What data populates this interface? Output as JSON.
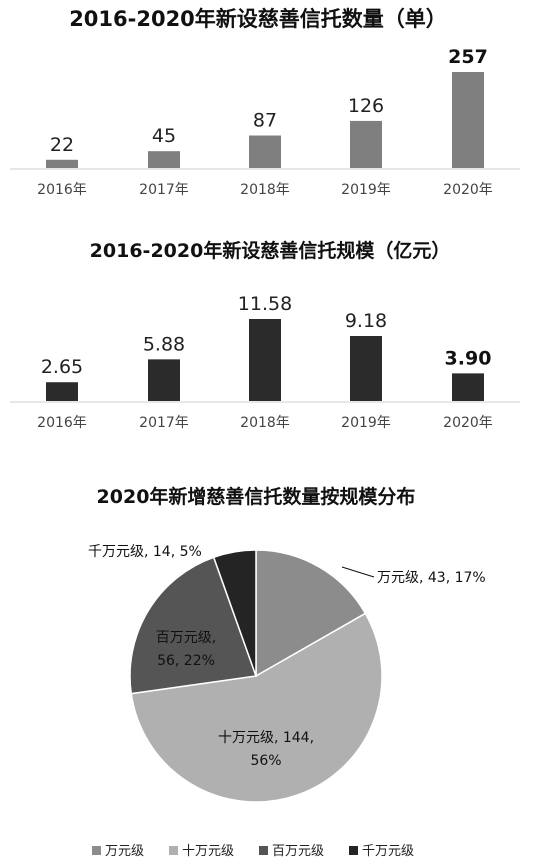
{
  "chart_data": [
    {
      "type": "bar",
      "title": "2016-2020年新设慈善信托数量（单）",
      "categories": [
        "2016年",
        "2017年",
        "2018年",
        "2019年",
        "2020年"
      ],
      "values": [
        22,
        45,
        87,
        126,
        257
      ],
      "value_labels": [
        "22",
        "45",
        "87",
        "126",
        "257"
      ],
      "ylim": [
        0,
        257
      ],
      "bar_color": "#7f7f7f",
      "grid": false
    },
    {
      "type": "bar",
      "title": "2016-2020年新设慈善信托规模（亿元）",
      "categories": [
        "2016年",
        "2017年",
        "2018年",
        "2019年",
        "2020年"
      ],
      "values": [
        2.65,
        5.88,
        11.58,
        9.18,
        3.9
      ],
      "value_labels": [
        "2.65",
        "5.88",
        "11.58",
        "9.18",
        "3.90"
      ],
      "ylim": [
        0,
        11.58
      ],
      "bar_color": "#2b2b2b",
      "grid": false
    },
    {
      "type": "pie",
      "title": "2020年新增慈善信托数量按规模分布",
      "categories": [
        "万元级",
        "十万元级",
        "百万元级",
        "千万元级"
      ],
      "values": [
        43,
        144,
        56,
        14
      ],
      "percents": [
        17,
        56,
        22,
        5
      ],
      "slice_labels": [
        "万元级, 43, 17%",
        "十万元级, 144,",
        "百万元级,",
        "千万元级, 14, 5%"
      ],
      "slice_labels_line2": [
        "",
        "56%",
        "56, 22%",
        ""
      ],
      "colors": [
        "#8c8c8c",
        "#b0b0b0",
        "#555555",
        "#242424"
      ],
      "legend": [
        "万元级",
        "十万元级",
        "百万元级",
        "千万元级"
      ],
      "legend_position": "bottom"
    }
  ]
}
